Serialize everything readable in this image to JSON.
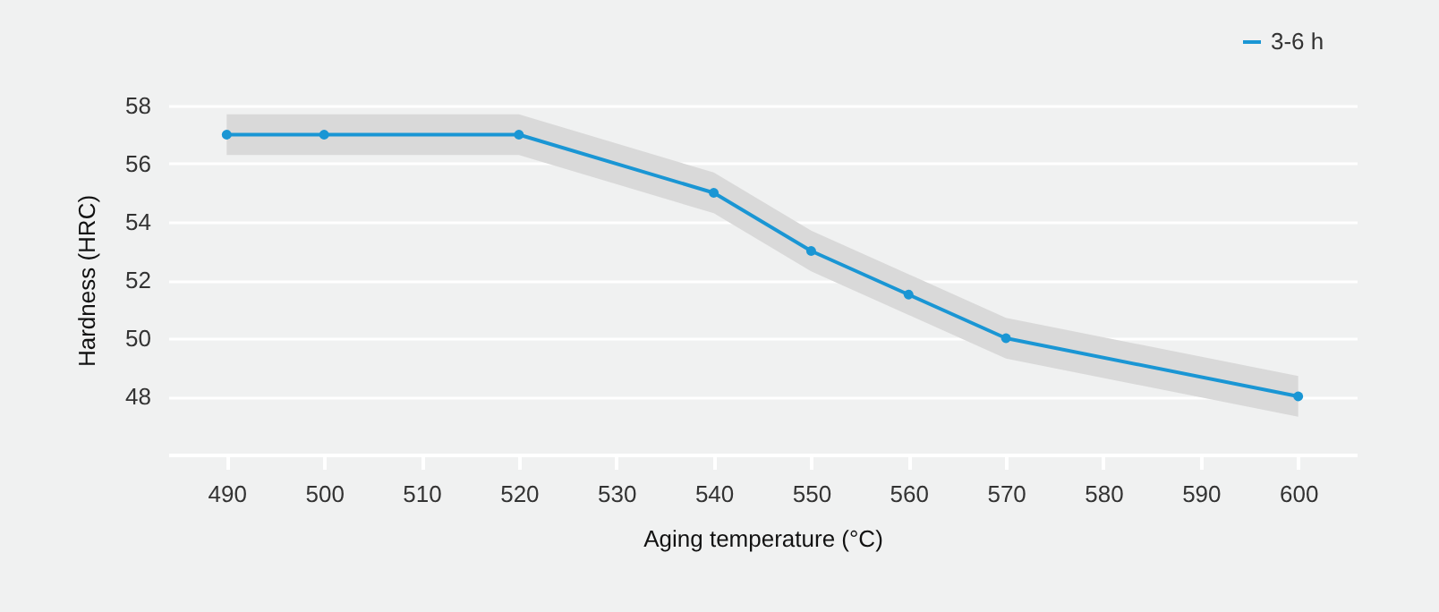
{
  "chart_data": {
    "type": "line",
    "xlabel": "Aging temperature (°C)",
    "ylabel": "Hardness (HRC)",
    "x": [
      490,
      500,
      520,
      540,
      550,
      560,
      570,
      600
    ],
    "series": [
      {
        "name": "3-6 h",
        "color": "#1a96d4",
        "values": [
          57,
          57,
          57,
          55,
          53,
          51.5,
          50,
          48
        ],
        "lower": [
          56.3,
          56.3,
          56.3,
          54.3,
          52.3,
          50.8,
          49.3,
          47.3
        ],
        "upper": [
          57.7,
          57.7,
          57.7,
          55.7,
          53.7,
          52.2,
          50.7,
          48.7
        ]
      }
    ],
    "xlim": [
      484,
      606
    ],
    "xticks": [
      490,
      500,
      510,
      520,
      530,
      540,
      550,
      560,
      570,
      580,
      590,
      600
    ],
    "ylim": [
      46,
      58
    ],
    "yticks": [
      48,
      50,
      52,
      54,
      56,
      58
    ],
    "grid": "y",
    "legend": "top right",
    "marker": "circle",
    "line_style": "solid"
  }
}
